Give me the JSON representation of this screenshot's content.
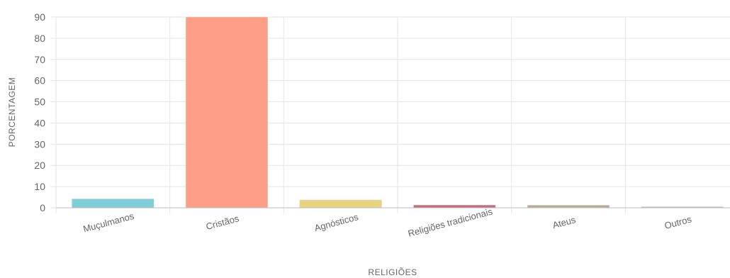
{
  "chart_data": {
    "type": "bar",
    "categories": [
      "Muçulmanos",
      "Cristãos",
      "Agnósticos",
      "Religiões tradicionais",
      "Ateus",
      "Outros"
    ],
    "values": [
      4.2,
      90,
      3.7,
      1.3,
      1.2,
      0.5
    ],
    "colors": [
      "#7fcfd8",
      "#ff9f87",
      "#e6d57e",
      "#c46b7d",
      "#bda896",
      "#bdb7b7"
    ],
    "xlabel": "RELIGIÕES",
    "ylabel": "PORCENTAGEM",
    "ylim": [
      0,
      90
    ],
    "yticks": [
      0,
      10,
      20,
      30,
      40,
      50,
      60,
      70,
      80,
      90
    ],
    "grid": true
  }
}
